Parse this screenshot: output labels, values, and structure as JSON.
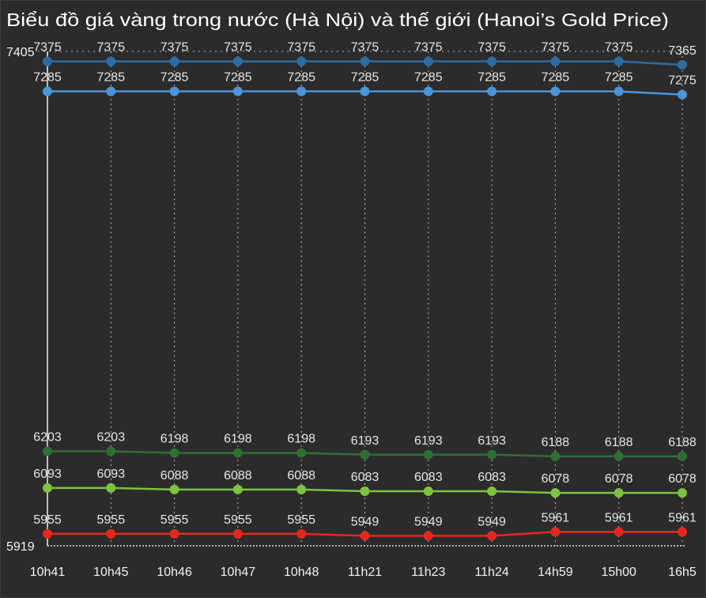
{
  "chart_data": {
    "type": "line",
    "title": "Biểu đồ giá vàng trong nước (Hà Nội) và thế giới (Hanoi’s Gold Price)",
    "categories": [
      "10h41",
      "10h45",
      "10h46",
      "10h47",
      "10h48",
      "11h21",
      "11h23",
      "11h24",
      "14h59",
      "15h00",
      "16h5"
    ],
    "ylim": [
      5919,
      7405
    ],
    "yticks": [
      7405,
      5919
    ],
    "grid": "vertical",
    "legend": "none",
    "data_labels": true,
    "series": [
      {
        "color": "#2c6ca3",
        "values": [
          7375,
          7375,
          7375,
          7375,
          7375,
          7375,
          7375,
          7375,
          7375,
          7375,
          7365
        ]
      },
      {
        "color": "#4a95da",
        "values": [
          7285,
          7285,
          7285,
          7285,
          7285,
          7285,
          7285,
          7285,
          7285,
          7285,
          7275
        ]
      },
      {
        "color": "#2f6e34",
        "values": [
          6203,
          6203,
          6198,
          6198,
          6198,
          6193,
          6193,
          6193,
          6188,
          6188,
          6188
        ]
      },
      {
        "color": "#80c241",
        "values": [
          6093,
          6093,
          6088,
          6088,
          6088,
          6083,
          6083,
          6083,
          6078,
          6078,
          6078
        ]
      },
      {
        "color": "#e5281e",
        "values": [
          5955,
          5955,
          5955,
          5955,
          5955,
          5949,
          5949,
          5949,
          5961,
          5961,
          5961
        ]
      }
    ]
  }
}
